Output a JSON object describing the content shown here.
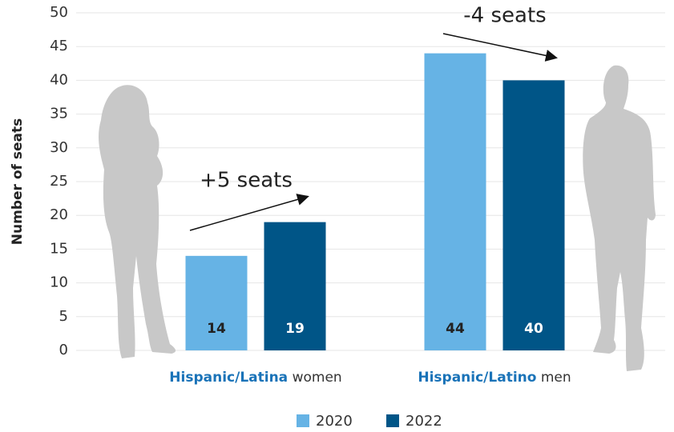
{
  "chart_data": {
    "type": "bar",
    "y_label": "Number of seats",
    "categories": [
      "Hispanic/Latina women",
      "Hispanic/Latino men"
    ],
    "series": [
      {
        "name": "2020",
        "color": "#66b3e5",
        "values": [
          14,
          44
        ]
      },
      {
        "name": "2022",
        "color": "#005587",
        "values": [
          19,
          40
        ]
      }
    ],
    "annotations": [
      "+5 seats",
      "-4 seats"
    ],
    "ylim": [
      0,
      50
    ],
    "yticks": [
      0,
      5,
      10,
      15,
      20,
      25,
      30,
      35,
      40,
      45,
      50
    ],
    "grid": true,
    "legend": "bottom"
  }
}
